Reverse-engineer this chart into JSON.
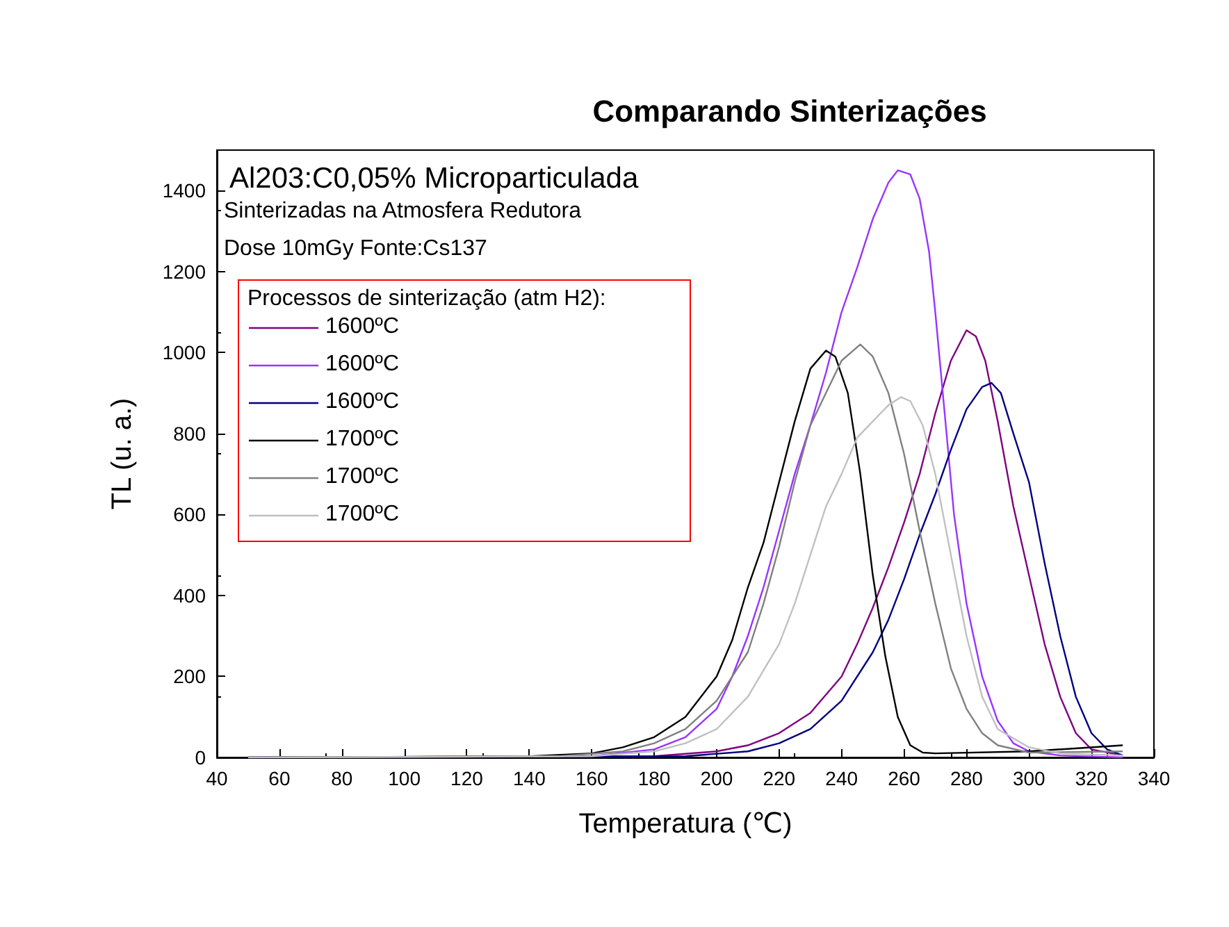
{
  "chart_data": {
    "type": "line",
    "title": "Comparando Sinterizações",
    "xlabel": "Temperatura (℃)",
    "ylabel": "TL (u. a.)",
    "legend_title": "Processos de sinterização (atm H2):",
    "annotations": [
      "Al203:C0,05% Microparticulada",
      "Sinterizadas na Atmosfera Redutora",
      "Dose 10mGy Fonte:Cs137"
    ],
    "xlim": [
      40,
      340
    ],
    "xticks": [
      40,
      60,
      80,
      100,
      120,
      140,
      160,
      180,
      200,
      220,
      240,
      260,
      280,
      300,
      320,
      340
    ],
    "ylim": [
      0,
      1500
    ],
    "yticks": [
      0,
      200,
      400,
      600,
      800,
      1000,
      1200,
      1400
    ],
    "grid": false,
    "legend": "top left",
    "marker": "none",
    "line_style": "solid",
    "series": [
      {
        "name": "1600ºC",
        "color": "#800080",
        "x": [
          50,
          180,
          200,
          210,
          220,
          230,
          240,
          245,
          250,
          255,
          260,
          265,
          270,
          275,
          280,
          283,
          286,
          290,
          295,
          300,
          305,
          310,
          315,
          320,
          330
        ],
        "values": [
          0,
          3,
          15,
          30,
          60,
          110,
          200,
          280,
          370,
          470,
          580,
          700,
          850,
          980,
          1055,
          1040,
          980,
          830,
          620,
          450,
          280,
          150,
          60,
          20,
          5
        ]
      },
      {
        "name": "1600ºC",
        "color": "#9933ff",
        "x": [
          50,
          160,
          180,
          190,
          200,
          205,
          210,
          215,
          220,
          225,
          230,
          235,
          240,
          245,
          250,
          255,
          258,
          262,
          265,
          268,
          270,
          273,
          276,
          280,
          285,
          290,
          295,
          300,
          310,
          330
        ],
        "values": [
          0,
          3,
          20,
          50,
          120,
          200,
          300,
          420,
          560,
          700,
          820,
          950,
          1100,
          1210,
          1330,
          1420,
          1450,
          1440,
          1380,
          1250,
          1100,
          850,
          600,
          380,
          200,
          90,
          35,
          15,
          5,
          0
        ]
      },
      {
        "name": "1600ºC",
        "color": "#000080",
        "x": [
          50,
          190,
          210,
          220,
          230,
          240,
          250,
          255,
          260,
          265,
          270,
          275,
          280,
          285,
          288,
          291,
          295,
          300,
          305,
          310,
          315,
          320,
          325,
          330
        ],
        "values": [
          0,
          3,
          15,
          35,
          70,
          140,
          260,
          340,
          440,
          550,
          650,
          760,
          860,
          915,
          925,
          900,
          800,
          680,
          480,
          300,
          150,
          60,
          20,
          5
        ]
      },
      {
        "name": "1700ºC",
        "color": "#000000",
        "x": [
          50,
          140,
          160,
          170,
          180,
          190,
          200,
          205,
          210,
          215,
          220,
          225,
          230,
          235,
          238,
          242,
          246,
          250,
          254,
          258,
          262,
          266,
          270,
          300,
          330
        ],
        "values": [
          0,
          3,
          10,
          25,
          50,
          100,
          200,
          290,
          420,
          530,
          680,
          830,
          960,
          1005,
          990,
          900,
          700,
          450,
          250,
          100,
          30,
          12,
          10,
          15,
          30
        ]
      },
      {
        "name": "1700ºC",
        "color": "#808080",
        "x": [
          50,
          150,
          170,
          180,
          190,
          200,
          210,
          215,
          220,
          225,
          230,
          235,
          240,
          246,
          250,
          255,
          260,
          265,
          270,
          275,
          280,
          285,
          290,
          300,
          330
        ],
        "values": [
          0,
          3,
          15,
          35,
          70,
          140,
          260,
          380,
          520,
          680,
          820,
          900,
          980,
          1020,
          990,
          900,
          750,
          560,
          380,
          220,
          120,
          60,
          30,
          12,
          15
        ]
      },
      {
        "name": "1700ºC",
        "color": "#c0c0c0",
        "x": [
          50,
          160,
          180,
          190,
          200,
          210,
          220,
          225,
          230,
          235,
          240,
          245,
          250,
          255,
          259,
          262,
          266,
          270,
          275,
          280,
          285,
          290,
          300,
          310,
          330
        ],
        "values": [
          0,
          3,
          15,
          35,
          70,
          150,
          280,
          380,
          500,
          620,
          700,
          790,
          830,
          870,
          890,
          880,
          820,
          700,
          500,
          300,
          150,
          70,
          25,
          10,
          5
        ]
      }
    ]
  }
}
